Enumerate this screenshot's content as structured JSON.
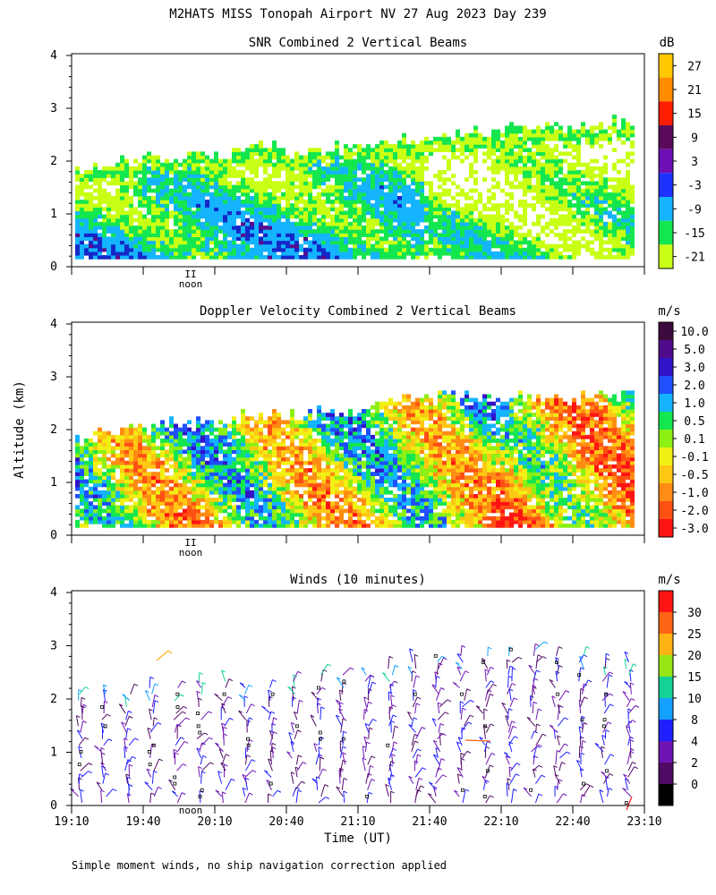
{
  "page": {
    "title": "M2HATS MISS Tonopah Airport NV  27 Aug 2023 Day 239",
    "ylabel": "Altitude (km)",
    "xlabel": "Time (UT)",
    "footnote": "Simple moment winds, no ship navigation correction applied",
    "noon_label": "noon",
    "noon_marker": "II"
  },
  "chart_data": [
    {
      "type": "heatmap",
      "id": "snr",
      "title": "SNR Combined 2 Vertical Beams",
      "ylabel": "Altitude (km)",
      "ylim": [
        0,
        4
      ],
      "yticks": [
        "0",
        "1",
        "2",
        "3",
        "4"
      ],
      "xlim_minutes": [
        0,
        240
      ],
      "colorbar": {
        "unit": "dB",
        "labels": [
          "27",
          "21",
          "15",
          "9",
          "3",
          "-3",
          "-9",
          "-15",
          "-21"
        ],
        "colors": [
          "#ffc800",
          "#ff8c00",
          "#ff1e00",
          "#5a0a5a",
          "#6e0fb4",
          "#1e32ff",
          "#14b4ff",
          "#14e650",
          "#c8ff14"
        ]
      },
      "colormap_low_to_high": [
        "#c8ff14",
        "#14e650",
        "#14b4ff",
        "#1e32ff",
        "#1428c8"
      ],
      "echo_top_km": [
        1.8,
        1.9,
        2.0,
        2.0,
        2.0,
        2.1,
        2.0,
        2.2,
        2.3,
        2.2,
        2.1,
        2.2,
        2.3,
        2.3,
        2.4,
        2.4,
        2.4,
        2.5,
        2.5,
        2.6,
        2.6,
        2.6,
        2.6,
        2.7,
        2.7
      ]
    },
    {
      "type": "heatmap",
      "id": "doppler",
      "title": "Doppler Velocity Combined 2 Vertical Beams",
      "ylabel": "Altitude (km)",
      "ylim": [
        0,
        4
      ],
      "yticks": [
        "0",
        "1",
        "2",
        "3",
        "4"
      ],
      "xlim_minutes": [
        0,
        240
      ],
      "colorbar": {
        "unit": "m/s",
        "labels": [
          "10.0",
          "5.0",
          "3.0",
          "2.0",
          "1.0",
          "0.5",
          "0.1",
          "-0.1",
          "-0.5",
          "-1.0",
          "-2.0",
          "-3.0"
        ],
        "colors": [
          "#3c0a3c",
          "#500a8c",
          "#3214c8",
          "#1e50ff",
          "#14b4ff",
          "#14e650",
          "#8cf014",
          "#f0f014",
          "#ffc814",
          "#ff8c14",
          "#ff5014",
          "#ff1414"
        ]
      },
      "echo_top_km": [
        1.8,
        1.9,
        2.0,
        2.0,
        2.1,
        2.1,
        2.1,
        2.2,
        2.3,
        2.2,
        2.3,
        2.3,
        2.4,
        2.5,
        2.5,
        2.6,
        2.6,
        2.6,
        2.5,
        2.6,
        2.6,
        2.5,
        2.6,
        2.6,
        2.6
      ]
    },
    {
      "type": "barbs",
      "id": "winds",
      "title": "Winds (10 minutes)",
      "ylabel": "Altitude (km)",
      "ylim": [
        0,
        4
      ],
      "yticks": [
        "0",
        "1",
        "2",
        "3",
        "4"
      ],
      "xlim_minutes": [
        0,
        240
      ],
      "xticks": [
        "19:10",
        "19:40",
        "20:10",
        "20:40",
        "21:10",
        "21:40",
        "22:10",
        "22:40",
        "23:10"
      ],
      "xlabel": "Time (UT)",
      "colorbar": {
        "unit": "m/s",
        "labels": [
          "30",
          "25",
          "20",
          "15",
          "10",
          "8",
          "4",
          "2",
          "0"
        ],
        "colors": [
          "#ff1414",
          "#ff6414",
          "#ffb414",
          "#96e614",
          "#14d296",
          "#14a0ff",
          "#1e1eff",
          "#6e14b4",
          "#500a64",
          "#000000"
        ]
      },
      "profile_time_minutes": [
        5,
        15,
        25,
        35,
        45,
        55,
        65,
        75,
        85,
        95,
        105,
        115,
        125,
        135,
        145,
        155,
        165,
        175,
        185,
        195,
        205,
        215,
        225,
        235
      ],
      "profile_top_km": [
        2.2,
        2.2,
        2.2,
        2.3,
        2.3,
        2.4,
        2.4,
        2.3,
        2.3,
        2.4,
        2.5,
        2.5,
        2.5,
        2.6,
        2.7,
        2.9,
        2.9,
        2.9,
        3.0,
        3.0,
        2.9,
        2.9,
        2.8,
        2.8
      ]
    }
  ]
}
